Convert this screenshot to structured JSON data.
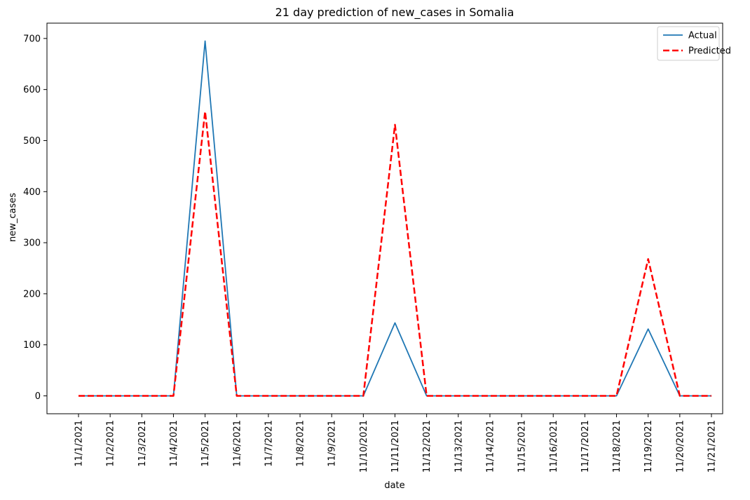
{
  "chart_data": {
    "type": "line",
    "title": "21 day prediction of new_cases in Somalia",
    "xlabel": "date",
    "ylabel": "new_cases",
    "categories": [
      "11/1/2021",
      "11/2/2021",
      "11/3/2021",
      "11/4/2021",
      "11/5/2021",
      "11/6/2021",
      "11/7/2021",
      "11/8/2021",
      "11/9/2021",
      "11/10/2021",
      "11/11/2021",
      "11/12/2021",
      "11/13/2021",
      "11/14/2021",
      "11/15/2021",
      "11/16/2021",
      "11/17/2021",
      "11/18/2021",
      "11/19/2021",
      "11/20/2021",
      "11/21/2021"
    ],
    "yticks": [
      0,
      100,
      200,
      300,
      400,
      500,
      600,
      700
    ],
    "ylim": [
      -35,
      730
    ],
    "grid": false,
    "legend_position": "top-right",
    "series": [
      {
        "name": "Actual",
        "color": "#1f77b4",
        "style": "solid",
        "values": [
          0,
          0,
          0,
          0,
          695,
          0,
          0,
          0,
          0,
          0,
          143,
          0,
          0,
          0,
          0,
          0,
          0,
          0,
          131,
          0,
          0
        ]
      },
      {
        "name": "Predicted",
        "color": "#ff0000",
        "style": "dashed",
        "values": [
          0,
          0,
          0,
          0,
          557,
          0,
          0,
          0,
          0,
          0,
          531,
          0,
          0,
          0,
          0,
          0,
          0,
          0,
          268,
          0,
          0
        ]
      }
    ]
  }
}
